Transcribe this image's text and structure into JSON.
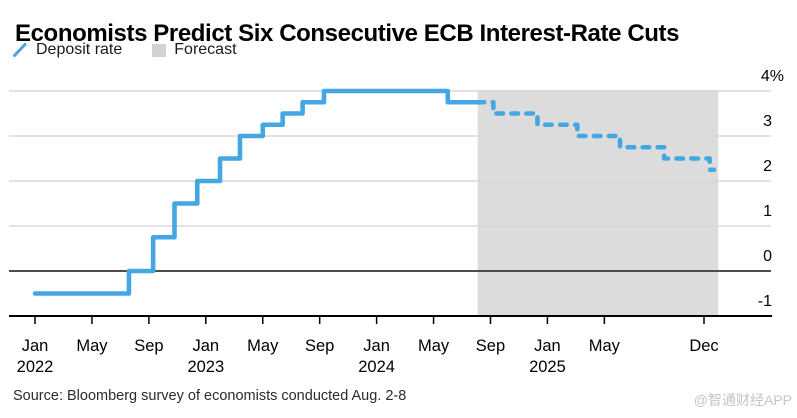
{
  "header": {
    "title": "Economists Predict Six Consecutive ECB Interest-Rate Cuts"
  },
  "legend": {
    "items": [
      {
        "label": "Deposit rate",
        "swatch": "line",
        "color": "#45A6E4"
      },
      {
        "label": "Forecast",
        "swatch": "square",
        "color": "#D2D2D2"
      }
    ]
  },
  "footer": {
    "source": "Source: Bloomberg survey of economists conducted Aug. 2-8",
    "watermark": "@智通财经APP",
    "watermark_color": "#C5C5C5"
  },
  "colors": {
    "line_blue": "#45A6E4",
    "forecast_band": "#DCDCDC",
    "gridline": "#D8D8D8",
    "zero_line": "#4D4D4D",
    "axis_black": "#000000",
    "label_black": "#000000"
  },
  "chart_data": {
    "type": "line",
    "subtype": "step",
    "title": "Economists Predict Six Consecutive ECB Interest-Rate Cuts",
    "unit": "%",
    "ylim": [
      -1,
      4.45
    ],
    "grid": true,
    "legend_position": "top-left",
    "y_axis": {
      "side": "right",
      "ticks": [
        {
          "value": 4,
          "label": "4%"
        },
        {
          "value": 3,
          "label": "3"
        },
        {
          "value": 2,
          "label": "2"
        },
        {
          "value": 1,
          "label": "1"
        },
        {
          "value": 0,
          "label": "0"
        },
        {
          "value": -1,
          "label": "-1"
        }
      ]
    },
    "x_axis": {
      "note": "month = months since Jan 2022",
      "ticks": [
        {
          "month": 0,
          "label": "Jan",
          "year": "2022"
        },
        {
          "month": 4,
          "label": "May"
        },
        {
          "month": 8,
          "label": "Sep"
        },
        {
          "month": 12,
          "label": "Jan",
          "year": "2023"
        },
        {
          "month": 16,
          "label": "May"
        },
        {
          "month": 20,
          "label": "Sep"
        },
        {
          "month": 24,
          "label": "Jan",
          "year": "2024"
        },
        {
          "month": 28,
          "label": "May"
        },
        {
          "month": 32,
          "label": "Sep"
        },
        {
          "month": 36,
          "label": "Jan",
          "year": "2025"
        },
        {
          "month": 40,
          "label": "May"
        },
        {
          "month": 47,
          "label": "Dec"
        }
      ]
    },
    "series": [
      {
        "name": "Deposit rate (actual)",
        "line": "solid",
        "end_month": 31.1,
        "points": [
          {
            "date": "Jan 2022",
            "month": 0,
            "rate": -0.5
          },
          {
            "date": "Jul 2022",
            "month": 6.6,
            "rate": 0.0
          },
          {
            "date": "Sep 2022",
            "month": 8.3,
            "rate": 0.75
          },
          {
            "date": "Nov 2022",
            "month": 9.8,
            "rate": 1.5
          },
          {
            "date": "Dec 2022",
            "month": 11.4,
            "rate": 2.0
          },
          {
            "date": "Feb 2023",
            "month": 13.0,
            "rate": 2.5
          },
          {
            "date": "Mar 2023",
            "month": 14.4,
            "rate": 3.0
          },
          {
            "date": "May 2023",
            "month": 16.0,
            "rate": 3.25
          },
          {
            "date": "Jun 2023",
            "month": 17.4,
            "rate": 3.5
          },
          {
            "date": "Aug 2023",
            "month": 18.8,
            "rate": 3.75
          },
          {
            "date": "Sep 2023",
            "month": 20.3,
            "rate": 4.0
          },
          {
            "date": "Jun 2024",
            "month": 29.0,
            "rate": 3.75
          }
        ]
      },
      {
        "name": "Deposit rate (forecast)",
        "line": "dashed",
        "start_month": 31.1,
        "start_rate": 3.75,
        "end_month": 47.7,
        "points": [
          {
            "date": "Sep 2024",
            "month": 32.2,
            "rate": 3.5
          },
          {
            "date": "Dec 2024",
            "month": 35.3,
            "rate": 3.25
          },
          {
            "date": "Mar 2025",
            "month": 38.1,
            "rate": 3.0
          },
          {
            "date": "Jun 2025",
            "month": 41.1,
            "rate": 2.75
          },
          {
            "date": "Sep 2025",
            "month": 44.2,
            "rate": 2.5
          },
          {
            "date": "Dec 2025",
            "month": 47.4,
            "rate": 2.25
          }
        ]
      }
    ],
    "forecast_band": {
      "start_month": 31.1,
      "end_month": 48
    }
  }
}
